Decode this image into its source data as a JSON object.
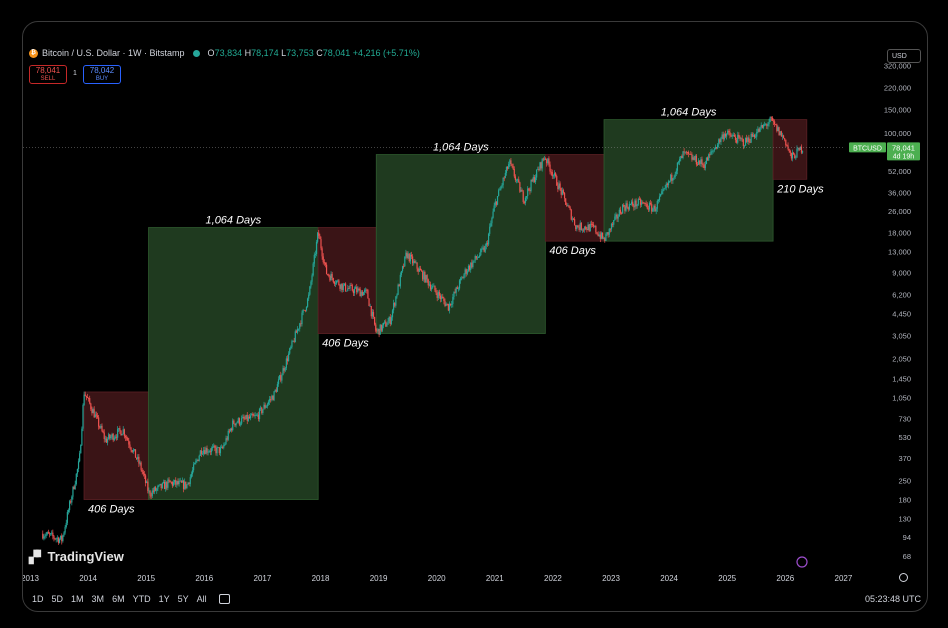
{
  "header": {
    "title": "Bitcoin / U.S. Dollar · 1W · Bitstamp",
    "open_label": "O",
    "open": "73,834",
    "high_label": "H",
    "high": "78,174",
    "low_label": "L",
    "low": "73,753",
    "close_label": "C",
    "close": "78,041",
    "change": "+4,216 (+5.71%)"
  },
  "trade": {
    "sell_price": "78,041",
    "sell_label": "SELL",
    "buy_price": "78,042",
    "buy_label": "BUY",
    "spread": "1"
  },
  "currency": "USD",
  "price_tag": {
    "symbol": "BTCUSD",
    "price": "78,041",
    "countdown": "4d 19h"
  },
  "brand": "TradingView",
  "bottom": {
    "ranges": [
      "1D",
      "5D",
      "1M",
      "3M",
      "6M",
      "YTD",
      "1Y",
      "5Y",
      "All"
    ],
    "clock": "05:23:48 UTC"
  },
  "colors": {
    "up": "#26a69a",
    "down": "#ef5350",
    "bull_box": "#1f3a1f",
    "bear_box": "#3a1416",
    "last_price": "#4caf50"
  },
  "chart_data": {
    "type": "candlestick",
    "y_scale": "log",
    "ylim": [
      55,
      320000
    ],
    "x_ticks": [
      "2013",
      "2014",
      "2015",
      "2016",
      "2017",
      "2018",
      "2019",
      "2020",
      "2021",
      "2022",
      "2023",
      "2024",
      "2025",
      "2026",
      "2027"
    ],
    "y_ticks": [
      "320,000",
      "220,000",
      "150,000",
      "100,000",
      "52,000",
      "36,000",
      "26,000",
      "18,000",
      "13,000",
      "9,000",
      "6,200",
      "4,450",
      "3,050",
      "2,050",
      "1,450",
      "1,050",
      "730",
      "530",
      "370",
      "250",
      "180",
      "130",
      "94",
      "68"
    ],
    "price_path": [
      {
        "t": 2013.22,
        "p": 100
      },
      {
        "t": 2013.55,
        "p": 90
      },
      {
        "t": 2013.85,
        "p": 350
      },
      {
        "t": 2013.93,
        "p": 1150
      },
      {
        "t": 2014.1,
        "p": 800
      },
      {
        "t": 2014.3,
        "p": 500
      },
      {
        "t": 2014.6,
        "p": 600
      },
      {
        "t": 2014.9,
        "p": 320
      },
      {
        "t": 2015.05,
        "p": 200
      },
      {
        "t": 2015.4,
        "p": 240
      },
      {
        "t": 2015.7,
        "p": 230
      },
      {
        "t": 2015.95,
        "p": 430
      },
      {
        "t": 2016.3,
        "p": 420
      },
      {
        "t": 2016.5,
        "p": 680
      },
      {
        "t": 2016.9,
        "p": 750
      },
      {
        "t": 2017.2,
        "p": 1100
      },
      {
        "t": 2017.5,
        "p": 2500
      },
      {
        "t": 2017.8,
        "p": 6000
      },
      {
        "t": 2017.96,
        "p": 18000
      },
      {
        "t": 2018.1,
        "p": 9000
      },
      {
        "t": 2018.4,
        "p": 7000
      },
      {
        "t": 2018.8,
        "p": 6300
      },
      {
        "t": 2018.96,
        "p": 3200
      },
      {
        "t": 2019.2,
        "p": 4000
      },
      {
        "t": 2019.48,
        "p": 12500
      },
      {
        "t": 2019.9,
        "p": 7200
      },
      {
        "t": 2020.2,
        "p": 5000
      },
      {
        "t": 2020.5,
        "p": 9300
      },
      {
        "t": 2020.85,
        "p": 14000
      },
      {
        "t": 2021.0,
        "p": 29000
      },
      {
        "t": 2021.25,
        "p": 60000
      },
      {
        "t": 2021.5,
        "p": 32000
      },
      {
        "t": 2021.86,
        "p": 67000
      },
      {
        "t": 2022.1,
        "p": 40000
      },
      {
        "t": 2022.4,
        "p": 20000
      },
      {
        "t": 2022.7,
        "p": 19500
      },
      {
        "t": 2022.88,
        "p": 15800
      },
      {
        "t": 2023.2,
        "p": 28000
      },
      {
        "t": 2023.5,
        "p": 30000
      },
      {
        "t": 2023.75,
        "p": 27000
      },
      {
        "t": 2024.0,
        "p": 43000
      },
      {
        "t": 2024.25,
        "p": 70000
      },
      {
        "t": 2024.6,
        "p": 58000
      },
      {
        "t": 2024.95,
        "p": 100000
      },
      {
        "t": 2025.3,
        "p": 85000
      },
      {
        "t": 2025.75,
        "p": 124000
      },
      {
        "t": 2026.0,
        "p": 88000
      },
      {
        "t": 2026.1,
        "p": 65000
      },
      {
        "t": 2026.3,
        "p": 78041
      }
    ],
    "boxes": [
      {
        "kind": "bear",
        "start": 2013.93,
        "end": 2015.04,
        "low": 180,
        "high": 1150,
        "label": "406 Days",
        "label_pos": "bottom"
      },
      {
        "kind": "bull",
        "start": 2015.04,
        "end": 2017.96,
        "low": 180,
        "high": 19600,
        "label": "1,064 Days",
        "label_pos": "top"
      },
      {
        "kind": "bear",
        "start": 2017.96,
        "end": 2018.96,
        "low": 3150,
        "high": 19600,
        "label": "406 Days",
        "label_pos": "bottom"
      },
      {
        "kind": "bull",
        "start": 2018.96,
        "end": 2021.87,
        "low": 3150,
        "high": 69000,
        "label": "1,064 Days",
        "label_pos": "top"
      },
      {
        "kind": "bear",
        "start": 2021.87,
        "end": 2022.88,
        "low": 15500,
        "high": 69000,
        "label": "406 Days",
        "label_pos": "bottom"
      },
      {
        "kind": "bull",
        "start": 2022.88,
        "end": 2025.79,
        "low": 15500,
        "high": 126000,
        "label": "1,064 Days",
        "label_pos": "top"
      },
      {
        "kind": "bear",
        "start": 2025.79,
        "end": 2026.37,
        "low": 45000,
        "high": 126000,
        "label": "210 Days",
        "label_pos": "bottom"
      }
    ],
    "last_price": 78041
  }
}
